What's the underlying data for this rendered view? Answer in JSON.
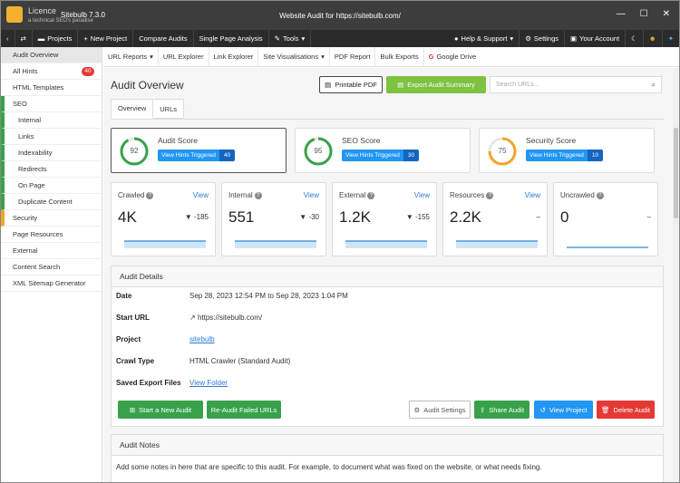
{
  "window": {
    "license_label": "Licence",
    "app_name": "Sitebulb 7.3.0",
    "tagline": "a technical SEO's paradise",
    "title": "Website Audit for https://sitebulb.com/"
  },
  "menubar": {
    "back": "‹",
    "swap": "⇄",
    "projects": "Projects",
    "new_project": "New Project",
    "compare_audits": "Compare Audits",
    "single_page_analysis": "Single Page Analysis",
    "tools": "Tools",
    "help_support": "Help & Support",
    "settings": "Settings",
    "your_account": "Your Account"
  },
  "sidebar": {
    "items": [
      {
        "label": "Audit Overview"
      },
      {
        "label": "All Hints",
        "badge": "40"
      },
      {
        "label": "HTML Templates"
      },
      {
        "label": "SEO"
      },
      {
        "label": "Internal"
      },
      {
        "label": "Links"
      },
      {
        "label": "Indexability"
      },
      {
        "label": "Redirects"
      },
      {
        "label": "On Page"
      },
      {
        "label": "Duplicate Content"
      },
      {
        "label": "Security"
      },
      {
        "label": "Page Resources"
      },
      {
        "label": "External"
      },
      {
        "label": "Content Search"
      },
      {
        "label": "XML Sitemap Generator"
      }
    ]
  },
  "subtoolbar": {
    "url_reports": "URL Reports",
    "url_explorer": "URL Explorer",
    "link_explorer": "Link Explorer",
    "site_visualisations": "Site Visualisations",
    "pdf_report": "PDF Report",
    "bulk_exports": "Bulk Exports",
    "google_drive": "Google Drive"
  },
  "main": {
    "title": "Audit Overview",
    "printable_pdf": "Printable PDF",
    "export_summary": "Export Audit Summary",
    "search_placeholder": "Search URLs...",
    "tabs": [
      {
        "label": "Overview"
      },
      {
        "label": "URLs"
      }
    ]
  },
  "scores": [
    {
      "title": "Audit Score",
      "value": "92",
      "hints_label": "View Hints Triggered",
      "hints_count": "40",
      "color": "#38a24a",
      "fraction": 0.92
    },
    {
      "title": "SEO Score",
      "value": "95",
      "hints_label": "View Hints Triggered",
      "hints_count": "30",
      "color": "#38a24a",
      "fraction": 0.95
    },
    {
      "title": "Security Score",
      "value": "75",
      "hints_label": "View Hints Triggered",
      "hints_count": "10",
      "color": "#f2a42c",
      "fraction": 0.75
    }
  ],
  "stats": [
    {
      "name": "Crawled",
      "view": "View",
      "value": "4K",
      "change": "▼ -185"
    },
    {
      "name": "Internal",
      "view": "View",
      "value": "551",
      "change": "▼ -30"
    },
    {
      "name": "External",
      "view": "View",
      "value": "1.2K",
      "change": "▼ -155"
    },
    {
      "name": "Resources",
      "view": "View",
      "value": "2.2K",
      "change": "–"
    },
    {
      "name": "Uncrawled",
      "view": "",
      "value": "0",
      "change": "–"
    }
  ],
  "details": {
    "heading": "Audit Details",
    "date_label": "Date",
    "date_value": "Sep 28, 2023 12:54 PM to Sep 28, 2023 1:04 PM",
    "start_url_label": "Start URL",
    "start_url_value": "https://sitebulb.com/",
    "project_label": "Project",
    "project_value": "sitebulb",
    "crawl_type_label": "Crawl Type",
    "crawl_type_value": "HTML Crawler (Standard Audit)",
    "saved_export_label": "Saved Export Files",
    "saved_export_value": "View Folder",
    "btn_start_new": "Start a New Audit",
    "btn_reaudit": "Re-Audit Failed URLs",
    "btn_audit_settings": "Audit Settings",
    "btn_share": "Share Audit",
    "btn_view_project": "View Project",
    "btn_delete": "Delete Audit"
  },
  "notes": {
    "heading": "Audit Notes",
    "body": "Add some notes in here that are specific to this audit. For example, to document what was fixed on the website, or what needs fixing."
  }
}
